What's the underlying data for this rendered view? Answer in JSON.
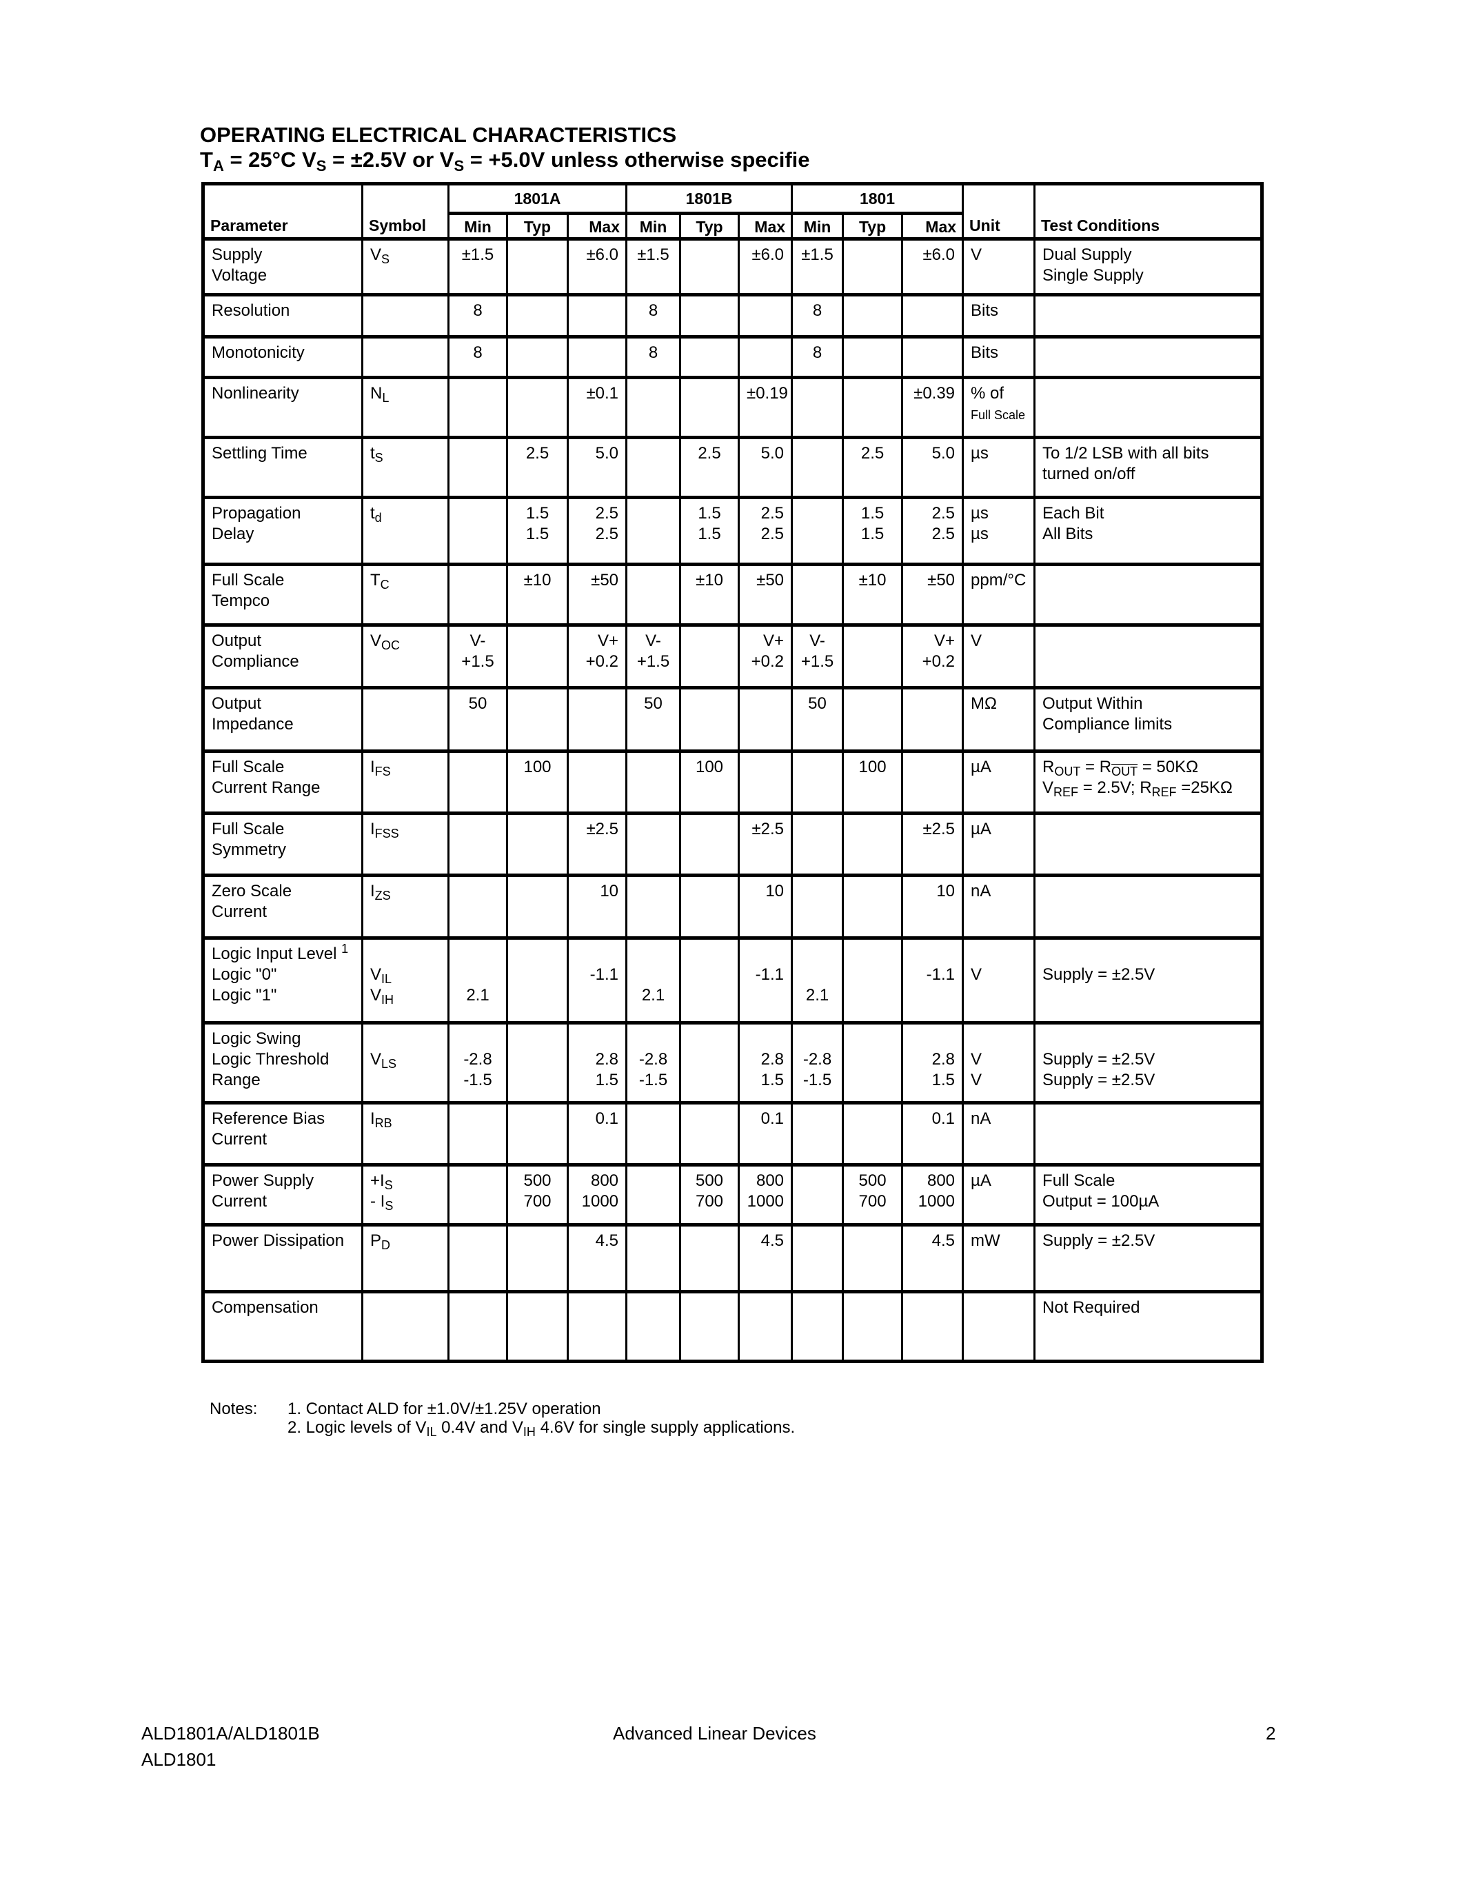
{
  "title": {
    "line1": "OPERATING ELECTRICAL CHARACTERISTICS",
    "line2": [
      {
        "t": "T"
      },
      {
        "sub": "A"
      },
      {
        "t": " = 25°C  V"
      },
      {
        "sub": "S"
      },
      {
        "t": " = ±2.5V or V"
      },
      {
        "sub": "S"
      },
      {
        "t": " = +5.0V   unless otherwise specifie"
      }
    ]
  },
  "table": {
    "headers": {
      "parameter": "Parameter",
      "symbol": "Symbol",
      "groups": [
        "1801A",
        "1801B",
        "1801"
      ],
      "sub": [
        "Min",
        "Typ",
        "Max"
      ],
      "unit": "Unit",
      "conditions": "Test Conditions"
    },
    "rows": [
      {
        "param": [
          "Supply",
          "Voltage"
        ],
        "symbol": [
          [
            {
              "t": "V"
            },
            {
              "sub": "S"
            }
          ]
        ],
        "vals": [
          [
            "±1.5"
          ],
          [],
          [
            "±6.0"
          ],
          [
            "±1.5"
          ],
          [],
          [
            "±6.0"
          ],
          [
            "±1.5"
          ],
          [],
          [
            "±6.0"
          ]
        ],
        "unit": [
          "V"
        ],
        "cond": [
          "Dual Supply",
          "Single Supply"
        ]
      },
      {
        "param": [
          "Resolution"
        ],
        "symbol": [],
        "vals": [
          [
            "8"
          ],
          [],
          [],
          [
            "8"
          ],
          [],
          [],
          [
            "8"
          ],
          [],
          []
        ],
        "unit": [
          "Bits"
        ],
        "cond": []
      },
      {
        "param": [
          "Monotonicity"
        ],
        "symbol": [],
        "vals": [
          [
            "8"
          ],
          [],
          [],
          [
            "8"
          ],
          [],
          [],
          [
            "8"
          ],
          [],
          []
        ],
        "unit": [
          "Bits"
        ],
        "cond": []
      },
      {
        "param": [
          "Nonlinearity"
        ],
        "symbol": [
          [
            {
              "t": "N"
            },
            {
              "sub": "L"
            }
          ]
        ],
        "vals": [
          [],
          [],
          [
            "±0.1"
          ],
          [],
          [],
          [
            "±0.19"
          ],
          [],
          [],
          [
            "±0.39"
          ]
        ],
        "unit": [
          "% of",
          [
            {
              "small": "Full Scale"
            }
          ]
        ],
        "cond": []
      },
      {
        "param": [
          "Settling Time"
        ],
        "symbol": [
          [
            {
              "t": "t"
            },
            {
              "sub": "S"
            }
          ]
        ],
        "vals": [
          [],
          [
            "2.5"
          ],
          [
            "5.0"
          ],
          [],
          [
            "2.5"
          ],
          [
            "5.0"
          ],
          [],
          [
            "2.5"
          ],
          [
            "5.0"
          ]
        ],
        "unit": [
          "µs"
        ],
        "cond": [
          "To 1/2 LSB with all bits",
          "turned on/off"
        ]
      },
      {
        "param": [
          "Propagation",
          "Delay"
        ],
        "symbol": [
          [
            {
              "t": "t"
            },
            {
              "sub": "d"
            }
          ]
        ],
        "vals": [
          [],
          [
            "1.5",
            "1.5"
          ],
          [
            "2.5",
            "2.5"
          ],
          [],
          [
            "1.5",
            "1.5"
          ],
          [
            "2.5",
            "2.5"
          ],
          [],
          [
            "1.5",
            "1.5"
          ],
          [
            "2.5",
            "2.5"
          ]
        ],
        "unit": [
          "µs",
          "µs"
        ],
        "cond": [
          "Each Bit",
          "All Bits"
        ]
      },
      {
        "param": [
          "Full Scale",
          "Tempco"
        ],
        "symbol": [
          [
            {
              "t": "T"
            },
            {
              "sub": "C"
            }
          ]
        ],
        "vals": [
          [],
          [
            "±10"
          ],
          [
            "±50"
          ],
          [],
          [
            "±10"
          ],
          [
            "±50"
          ],
          [],
          [
            "±10"
          ],
          [
            "±50"
          ]
        ],
        "unit": [
          "ppm/°C"
        ],
        "cond": []
      },
      {
        "param": [
          "Output",
          "Compliance"
        ],
        "symbol": [
          [
            {
              "t": "V"
            },
            {
              "sub": "OC"
            }
          ]
        ],
        "vals": [
          [
            "V-",
            "+1.5"
          ],
          [],
          [
            "V+",
            "+0.2"
          ],
          [
            "V-",
            "+1.5"
          ],
          [],
          [
            "V+",
            "+0.2"
          ],
          [
            "V-",
            "+1.5"
          ],
          [],
          [
            "V+",
            "+0.2"
          ]
        ],
        "unit": [
          "V"
        ],
        "cond": []
      },
      {
        "param": [
          "Output",
          "Impedance"
        ],
        "symbol": [],
        "vals": [
          [
            "50"
          ],
          [],
          [],
          [
            "50"
          ],
          [],
          [],
          [
            "50"
          ],
          [],
          []
        ],
        "unit": [
          "MΩ"
        ],
        "cond": [
          "Output Within",
          "Compliance limits"
        ]
      },
      {
        "param": [
          "Full Scale",
          "Current Range"
        ],
        "symbol": [
          [
            {
              "t": "I"
            },
            {
              "sub": "FS"
            }
          ]
        ],
        "vals": [
          [],
          [
            "100"
          ],
          [],
          [],
          [
            "100"
          ],
          [],
          [],
          [
            "100"
          ],
          []
        ],
        "unit": [
          "µA"
        ],
        "cond": [
          [
            {
              "t": "R"
            },
            {
              "sub": "OUT"
            },
            {
              "t": " = R"
            },
            {
              "subov": "OUT"
            },
            {
              "t": " = 50KΩ"
            }
          ],
          [
            {
              "t": "V"
            },
            {
              "sub": "REF"
            },
            {
              "t": " = 2.5V; R"
            },
            {
              "sub": "REF"
            },
            {
              "t": " =25KΩ"
            }
          ]
        ]
      },
      {
        "param": [
          "Full Scale",
          "Symmetry"
        ],
        "symbol": [
          [
            {
              "t": "I"
            },
            {
              "sub": "FSS"
            }
          ]
        ],
        "vals": [
          [],
          [],
          [
            "±2.5"
          ],
          [],
          [],
          [
            "±2.5"
          ],
          [],
          [],
          [
            "±2.5"
          ]
        ],
        "unit": [
          "µA"
        ],
        "cond": []
      },
      {
        "param": [
          "Zero Scale",
          "Current"
        ],
        "symbol": [
          [
            {
              "t": "I"
            },
            {
              "sub": "ZS"
            }
          ]
        ],
        "vals": [
          [],
          [],
          [
            "10"
          ],
          [],
          [],
          [
            "10"
          ],
          [],
          [],
          [
            "10"
          ]
        ],
        "unit": [
          "nA"
        ],
        "cond": []
      },
      {
        "param": [
          [
            {
              "t": "Logic Input Level "
            },
            {
              "sup": "1"
            }
          ],
          "Logic \"0\"",
          "Logic \"1\""
        ],
        "symbol": [
          "",
          [
            {
              "t": "V"
            },
            {
              "sub": "IL"
            }
          ],
          [
            {
              "t": "V"
            },
            {
              "sub": "IH"
            }
          ]
        ],
        "vals": [
          [
            "",
            "",
            "2.1"
          ],
          [],
          [
            "",
            "-1.1"
          ],
          [
            "",
            "",
            "2.1"
          ],
          [],
          [
            "",
            "-1.1"
          ],
          [
            "",
            "",
            "2.1"
          ],
          [],
          [
            "",
            "-1.1"
          ]
        ],
        "unit": [
          "",
          "V"
        ],
        "cond": [
          "",
          "Supply = ±2.5V"
        ]
      },
      {
        "param": [
          "Logic Swing",
          "Logic Threshold",
          "Range"
        ],
        "symbol": [
          "",
          [
            {
              "t": "V"
            },
            {
              "sub": "LS"
            }
          ]
        ],
        "vals": [
          [
            "",
            "-2.8",
            "-1.5"
          ],
          [],
          [
            "",
            "2.8",
            "1.5"
          ],
          [
            "",
            "-2.8",
            "-1.5"
          ],
          [],
          [
            "",
            "2.8",
            "1.5"
          ],
          [
            "",
            "-2.8",
            "-1.5"
          ],
          [],
          [
            "",
            "2.8",
            "1.5"
          ]
        ],
        "unit": [
          "",
          "V",
          "V"
        ],
        "cond": [
          "",
          "Supply = ±2.5V",
          "Supply = ±2.5V"
        ]
      },
      {
        "param": [
          "Reference Bias",
          "Current"
        ],
        "symbol": [
          [
            {
              "t": "I"
            },
            {
              "sub": "RB"
            }
          ]
        ],
        "vals": [
          [],
          [],
          [
            "0.1"
          ],
          [],
          [],
          [
            "0.1"
          ],
          [],
          [],
          [
            "0.1"
          ]
        ],
        "unit": [
          "nA"
        ],
        "cond": []
      },
      {
        "param": [
          "Power Supply",
          "Current"
        ],
        "symbol": [
          [
            {
              "t": "+I"
            },
            {
              "sub": "S"
            }
          ],
          [
            {
              "t": "- I"
            },
            {
              "sub": "S"
            }
          ]
        ],
        "vals": [
          [],
          [
            "500",
            "700"
          ],
          [
            "800",
            "1000"
          ],
          [],
          [
            "500",
            "700"
          ],
          [
            "800",
            "1000"
          ],
          [],
          [
            "500",
            "700"
          ],
          [
            "800",
            "1000"
          ]
        ],
        "unit": [
          "µA"
        ],
        "cond": [
          "Full Scale",
          "Output = 100µA"
        ]
      },
      {
        "param": [
          "Power Dissipation"
        ],
        "symbol": [
          [
            {
              "t": "P"
            },
            {
              "sub": "D"
            }
          ]
        ],
        "vals": [
          [],
          [],
          [
            "4.5"
          ],
          [],
          [],
          [
            "4.5"
          ],
          [],
          [],
          [
            "4.5"
          ]
        ],
        "unit": [
          "mW"
        ],
        "cond": [
          "Supply = ±2.5V"
        ]
      },
      {
        "param": [
          "Compensation"
        ],
        "symbol": [],
        "vals": [
          [],
          [],
          [],
          [],
          [],
          [],
          [],
          [],
          []
        ],
        "unit": [],
        "cond": [
          "Not Required"
        ]
      }
    ]
  },
  "notes": {
    "label": "Notes:",
    "items": [
      [
        {
          "t": "1.  Contact ALD for ±1.0V/±1.25V operation"
        }
      ],
      [
        {
          "t": "2.  Logic levels of V"
        },
        {
          "sub": "IL"
        },
        {
          "t": " 0.4V and V"
        },
        {
          "sub": "IH"
        },
        {
          "t": " 4.6V for single supply applications."
        }
      ]
    ]
  },
  "footer": {
    "left": [
      "ALD1801A/ALD1801B",
      "ALD1801"
    ],
    "center": "Advanced Linear Devices",
    "page": "2"
  }
}
